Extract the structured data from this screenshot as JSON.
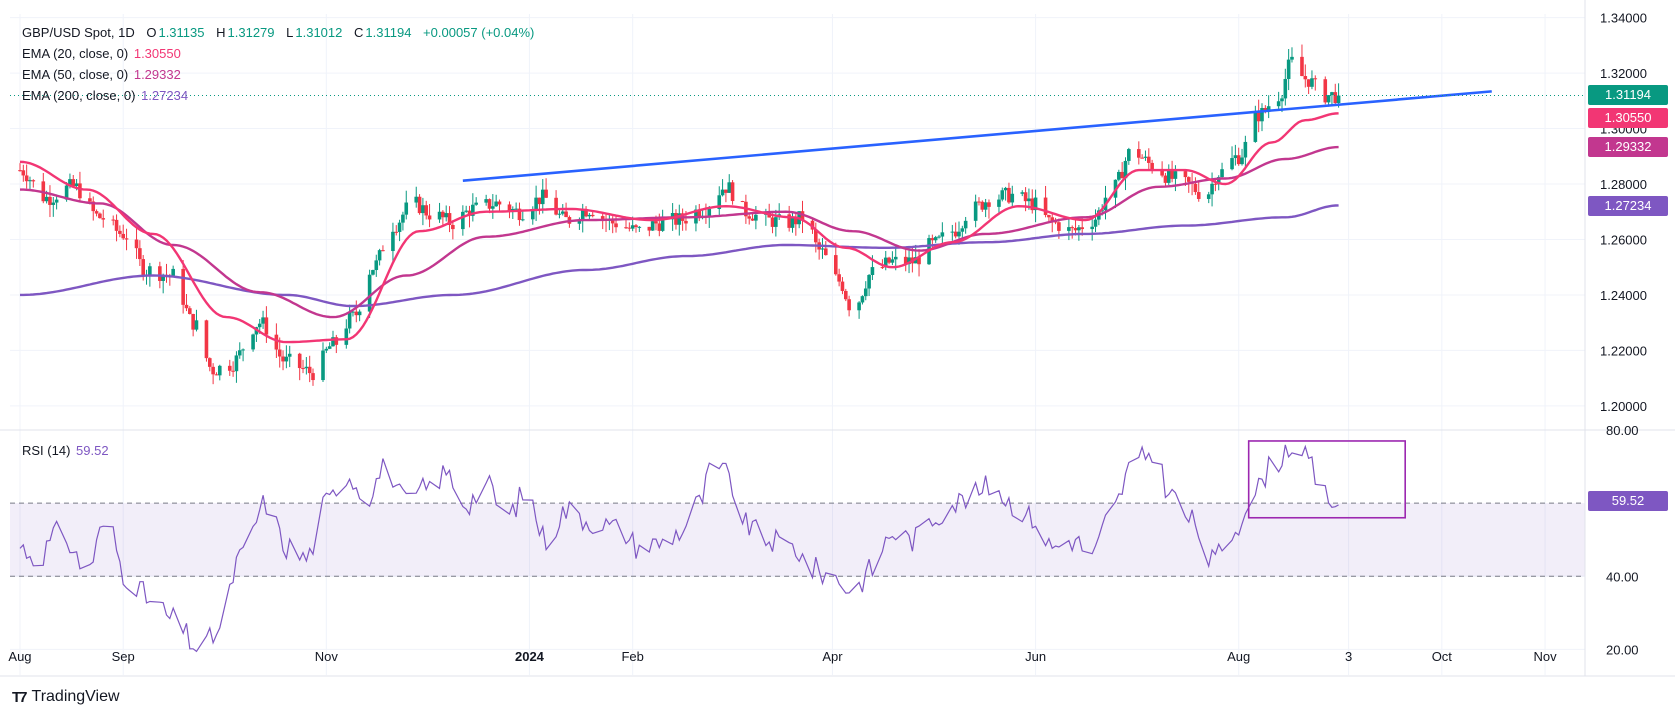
{
  "header": {
    "symbol": "GBP/USD Spot, 1D",
    "open_label": "O",
    "open": "1.31135",
    "high_label": "H",
    "high": "1.31279",
    "low_label": "L",
    "low": "1.31012",
    "close_label": "C",
    "close": "1.31194",
    "change": "+0.00057 (+0.04%)"
  },
  "indicators": {
    "ema20": {
      "label": "EMA (20, close, 0)",
      "value": "1.30550",
      "color": "#f23674"
    },
    "ema50": {
      "label": "EMA (50, close, 0)",
      "value": "1.29332",
      "color": "#c2378f"
    },
    "ema200": {
      "label": "EMA (200, close, 0)",
      "value": "1.27234",
      "color": "#7e57c2"
    },
    "rsi": {
      "label": "RSI (14)",
      "value": "59.52",
      "color": "#7e57c2"
    }
  },
  "price_badge": {
    "value": "1.31194",
    "color": "#089981"
  },
  "brand": {
    "name": "TradingView"
  },
  "chart_data": {
    "type": "candlestick",
    "x_ticks": [
      {
        "label": "Aug",
        "day": 0
      },
      {
        "label": "Sep",
        "day": 31
      },
      {
        "label": "Nov",
        "day": 92
      },
      {
        "label": "2024",
        "day": 153
      },
      {
        "label": "Feb",
        "day": 184
      },
      {
        "label": "Apr",
        "day": 244
      },
      {
        "label": "Jun",
        "day": 305
      },
      {
        "label": "Aug",
        "day": 366
      },
      {
        "label": "3",
        "day": 399
      },
      {
        "label": "Oct",
        "day": 427
      },
      {
        "label": "Nov",
        "day": 458
      }
    ],
    "x_range_days": [
      -3,
      470
    ],
    "price_axis": {
      "ticks": [
        "1.34000",
        "1.32000",
        "1.30000",
        "1.28000",
        "1.26000",
        "1.24000",
        "1.22000",
        "1.20000"
      ],
      "ylim": [
        1.1913,
        1.3413
      ]
    },
    "rsi_axis": {
      "ticks": [
        "80.00",
        "40.00",
        "20.00"
      ],
      "ylim": [
        13,
        80
      ],
      "levels": [
        60,
        40
      ]
    },
    "close_anchors": [
      [
        0,
        1.285
      ],
      [
        8,
        1.275
      ],
      [
        16,
        1.279
      ],
      [
        24,
        1.268
      ],
      [
        31,
        1.262
      ],
      [
        38,
        1.249
      ],
      [
        46,
        1.247
      ],
      [
        52,
        1.23
      ],
      [
        58,
        1.213
      ],
      [
        63,
        1.215
      ],
      [
        72,
        1.23
      ],
      [
        80,
        1.216
      ],
      [
        88,
        1.212
      ],
      [
        94,
        1.222
      ],
      [
        100,
        1.232
      ],
      [
        106,
        1.25
      ],
      [
        112,
        1.265
      ],
      [
        118,
        1.273
      ],
      [
        124,
        1.269
      ],
      [
        130,
        1.266
      ],
      [
        136,
        1.271
      ],
      [
        143,
        1.273
      ],
      [
        150,
        1.27
      ],
      [
        157,
        1.275
      ],
      [
        164,
        1.267
      ],
      [
        171,
        1.271
      ],
      [
        178,
        1.266
      ],
      [
        186,
        1.263
      ],
      [
        192,
        1.266
      ],
      [
        198,
        1.267
      ],
      [
        205,
        1.271
      ],
      [
        212,
        1.279
      ],
      [
        218,
        1.27
      ],
      [
        224,
        1.267
      ],
      [
        230,
        1.266
      ],
      [
        236,
        1.268
      ],
      [
        240,
        1.256
      ],
      [
        246,
        1.245
      ],
      [
        250,
        1.235
      ],
      [
        256,
        1.248
      ],
      [
        262,
        1.252
      ],
      [
        268,
        1.252
      ],
      [
        274,
        1.258
      ],
      [
        280,
        1.263
      ],
      [
        286,
        1.271
      ],
      [
        292,
        1.275
      ],
      [
        298,
        1.276
      ],
      [
        304,
        1.273
      ],
      [
        310,
        1.266
      ],
      [
        316,
        1.263
      ],
      [
        322,
        1.267
      ],
      [
        328,
        1.278
      ],
      [
        334,
        1.292
      ],
      [
        340,
        1.287
      ],
      [
        346,
        1.282
      ],
      [
        350,
        1.28
      ],
      [
        356,
        1.276
      ],
      [
        360,
        1.284
      ],
      [
        366,
        1.29
      ],
      [
        372,
        1.305
      ],
      [
        378,
        1.312
      ],
      [
        382,
        1.324
      ],
      [
        386,
        1.318
      ],
      [
        392,
        1.312
      ],
      [
        396,
        1.3119
      ]
    ],
    "rsi_anchors": [
      [
        0,
        48
      ],
      [
        5,
        45
      ],
      [
        12,
        52
      ],
      [
        20,
        42
      ],
      [
        26,
        55
      ],
      [
        32,
        40
      ],
      [
        40,
        33
      ],
      [
        46,
        28
      ],
      [
        54,
        20
      ],
      [
        60,
        25
      ],
      [
        66,
        45
      ],
      [
        74,
        60
      ],
      [
        80,
        48
      ],
      [
        86,
        45
      ],
      [
        92,
        60
      ],
      [
        98,
        68
      ],
      [
        104,
        62
      ],
      [
        110,
        70
      ],
      [
        116,
        60
      ],
      [
        122,
        64
      ],
      [
        128,
        68
      ],
      [
        134,
        60
      ],
      [
        140,
        65
      ],
      [
        146,
        56
      ],
      [
        152,
        63
      ],
      [
        158,
        50
      ],
      [
        164,
        58
      ],
      [
        172,
        55
      ],
      [
        180,
        53
      ],
      [
        186,
        48
      ],
      [
        192,
        49
      ],
      [
        198,
        52
      ],
      [
        204,
        60
      ],
      [
        208,
        70
      ],
      [
        212,
        68
      ],
      [
        218,
        54
      ],
      [
        224,
        50
      ],
      [
        232,
        48
      ],
      [
        238,
        42
      ],
      [
        244,
        40
      ],
      [
        250,
        36
      ],
      [
        256,
        42
      ],
      [
        262,
        52
      ],
      [
        268,
        50
      ],
      [
        274,
        56
      ],
      [
        280,
        60
      ],
      [
        286,
        62
      ],
      [
        292,
        65
      ],
      [
        298,
        60
      ],
      [
        304,
        56
      ],
      [
        310,
        48
      ],
      [
        316,
        50
      ],
      [
        322,
        46
      ],
      [
        328,
        58
      ],
      [
        334,
        70
      ],
      [
        340,
        74
      ],
      [
        346,
        62
      ],
      [
        352,
        55
      ],
      [
        358,
        44
      ],
      [
        364,
        52
      ],
      [
        370,
        62
      ],
      [
        376,
        70
      ],
      [
        382,
        76
      ],
      [
        386,
        72
      ],
      [
        392,
        62
      ],
      [
        396,
        59.52
      ]
    ],
    "ema20_series": [
      [
        0,
        1.288
      ],
      [
        20,
        1.278
      ],
      [
        40,
        1.262
      ],
      [
        62,
        1.232
      ],
      [
        80,
        1.223
      ],
      [
        98,
        1.224
      ],
      [
        120,
        1.263
      ],
      [
        140,
        1.27
      ],
      [
        165,
        1.271
      ],
      [
        190,
        1.267
      ],
      [
        212,
        1.272
      ],
      [
        232,
        1.268
      ],
      [
        248,
        1.257
      ],
      [
        262,
        1.25
      ],
      [
        280,
        1.259
      ],
      [
        300,
        1.272
      ],
      [
        320,
        1.267
      ],
      [
        336,
        1.285
      ],
      [
        350,
        1.285
      ],
      [
        362,
        1.28
      ],
      [
        376,
        1.295
      ],
      [
        386,
        1.303
      ],
      [
        396,
        1.3055
      ]
    ],
    "ema50_series": [
      [
        0,
        1.278
      ],
      [
        24,
        1.273
      ],
      [
        46,
        1.258
      ],
      [
        72,
        1.241
      ],
      [
        94,
        1.232
      ],
      [
        116,
        1.247
      ],
      [
        140,
        1.261
      ],
      [
        170,
        1.267
      ],
      [
        200,
        1.268
      ],
      [
        230,
        1.27
      ],
      [
        250,
        1.263
      ],
      [
        270,
        1.256
      ],
      [
        290,
        1.262
      ],
      [
        320,
        1.268
      ],
      [
        342,
        1.279
      ],
      [
        362,
        1.282
      ],
      [
        380,
        1.289
      ],
      [
        396,
        1.2933
      ]
    ],
    "ema200_series": [
      [
        0,
        1.24
      ],
      [
        40,
        1.247
      ],
      [
        80,
        1.24
      ],
      [
        100,
        1.236
      ],
      [
        130,
        1.24
      ],
      [
        170,
        1.249
      ],
      [
        200,
        1.254
      ],
      [
        230,
        1.258
      ],
      [
        260,
        1.257
      ],
      [
        290,
        1.259
      ],
      [
        320,
        1.262
      ],
      [
        350,
        1.265
      ],
      [
        380,
        1.268
      ],
      [
        396,
        1.2723
      ]
    ],
    "trendline": {
      "start": [
        133,
        1.2812
      ],
      "end": [
        442,
        1.3134
      ],
      "color": "#2962ff"
    },
    "highlight_box": {
      "day_start": 369,
      "day_end": 416,
      "rsi_top": 77,
      "rsi_bottom": 56,
      "color": "#9c27b0"
    }
  }
}
